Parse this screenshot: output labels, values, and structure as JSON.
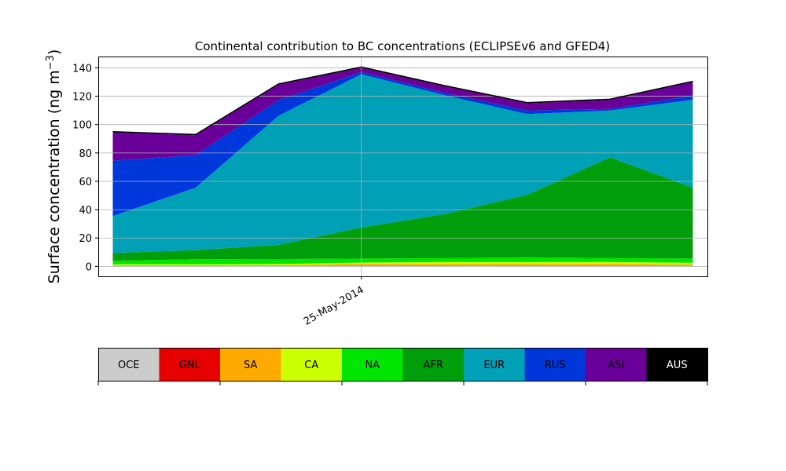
{
  "chart_data": {
    "type": "area",
    "title": "Continental contribution to BC concentrations (ECLIPSEv6 and GFED4)",
    "ylabel_main": "Surface concentration (ng m",
    "ylabel_sup": "−3",
    "ylabel_close": ")",
    "xlabel": "",
    "x_ticks": [
      {
        "date": "2014-05-25",
        "label": "25-May-2014"
      }
    ],
    "x": [
      "2014-05-22",
      "2014-05-23",
      "2014-05-24",
      "2014-05-25",
      "2014-05-26",
      "2014-05-27",
      "2014-05-28",
      "2014-05-29"
    ],
    "ylim": [
      -7,
      148
    ],
    "y_ticks": [
      0,
      20,
      40,
      60,
      80,
      100,
      120,
      140
    ],
    "grid": true,
    "stacked": true,
    "series": [
      {
        "name": "OCE",
        "color": "#cccccc",
        "values": [
          0.4,
          0.4,
          0.4,
          0.4,
          0.4,
          0.4,
          0.4,
          0.4
        ]
      },
      {
        "name": "GNL",
        "color": "#e60000",
        "values": [
          0.1,
          0.1,
          0.1,
          0.2,
          0.2,
          0.2,
          0.2,
          0.2
        ]
      },
      {
        "name": "SA",
        "color": "#ffaa00",
        "values": [
          0.3,
          0.3,
          0.4,
          1.2,
          1.0,
          1.0,
          1.2,
          0.7
        ]
      },
      {
        "name": "CA",
        "color": "#ccff00",
        "values": [
          0.7,
          0.7,
          0.8,
          0.9,
          1.4,
          1.4,
          1.2,
          1.2
        ]
      },
      {
        "name": "NA",
        "color": "#00e600",
        "values": [
          2.5,
          3.5,
          3.5,
          2.8,
          2.8,
          3.4,
          2.9,
          3.0
        ]
      },
      {
        "name": "AFR",
        "color": "#009e0a",
        "values": [
          5.5,
          6.5,
          10,
          22,
          31,
          44,
          71,
          50
        ]
      },
      {
        "name": "EUR",
        "color": "#00a0b7",
        "values": [
          26,
          44,
          91,
          108,
          84,
          57,
          33,
          62
        ]
      },
      {
        "name": "RUS",
        "color": "#0037db",
        "values": [
          39,
          23,
          11,
          1.5,
          1.6,
          2.6,
          1.1,
          3.0
        ]
      },
      {
        "name": "ASI",
        "color": "#6a0099",
        "values": [
          20,
          14,
          11,
          3.0,
          4.6,
          5.0,
          6.4,
          9.5
        ]
      },
      {
        "name": "AUS",
        "color": "#000000",
        "values": [
          0.5,
          0.5,
          0.5,
          0.6,
          0.5,
          0.5,
          0.5,
          0.5
        ]
      }
    ],
    "colorbar": {
      "labels": [
        "OCE",
        "GNL",
        "SA",
        "CA",
        "NA",
        "AFR",
        "EUR",
        "RUS",
        "ASI",
        "AUS"
      ],
      "colors": [
        "#cccccc",
        "#e60000",
        "#ffaa00",
        "#ccff00",
        "#00e600",
        "#009e0a",
        "#00a0b7",
        "#0037db",
        "#6a0099",
        "#000000"
      ],
      "label_colors": [
        "#000000",
        "#000000",
        "#000000",
        "#000000",
        "#000000",
        "#000000",
        "#000000",
        "#000000",
        "#000000",
        "#ffffff"
      ]
    }
  }
}
